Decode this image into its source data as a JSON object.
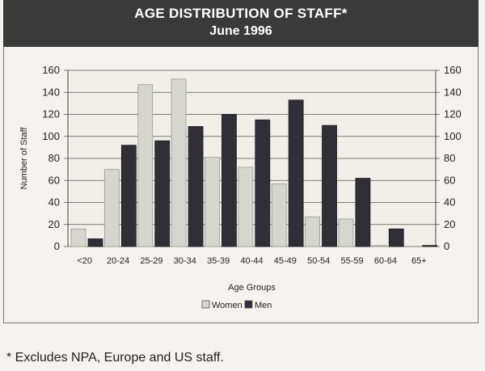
{
  "chart_data": {
    "type": "bar",
    "title": "AGE DISTRIBUTION OF STAFF*",
    "subtitle": "June 1996",
    "xlabel": "Age Groups",
    "ylabel": "Number of Staff",
    "ylim": [
      0,
      160
    ],
    "yticks": [
      0,
      20,
      40,
      60,
      80,
      100,
      120,
      140,
      160
    ],
    "grid": true,
    "legend_position": "bottom-center",
    "categories": [
      "<20",
      "20-24",
      "25-29",
      "30-34",
      "35-39",
      "40-44",
      "45-49",
      "50-54",
      "55-59",
      "60-64",
      "65+"
    ],
    "series": [
      {
        "name": "Women",
        "color": "#d6d6d0",
        "values": [
          16,
          70,
          147,
          152,
          81,
          72,
          57,
          27,
          25,
          1,
          0
        ]
      },
      {
        "name": "Men",
        "color": "#2f2f35",
        "values": [
          7,
          92,
          96,
          109,
          120,
          115,
          133,
          110,
          62,
          16,
          1
        ]
      }
    ]
  },
  "footnote": "* Excludes NPA, Europe and US staff."
}
